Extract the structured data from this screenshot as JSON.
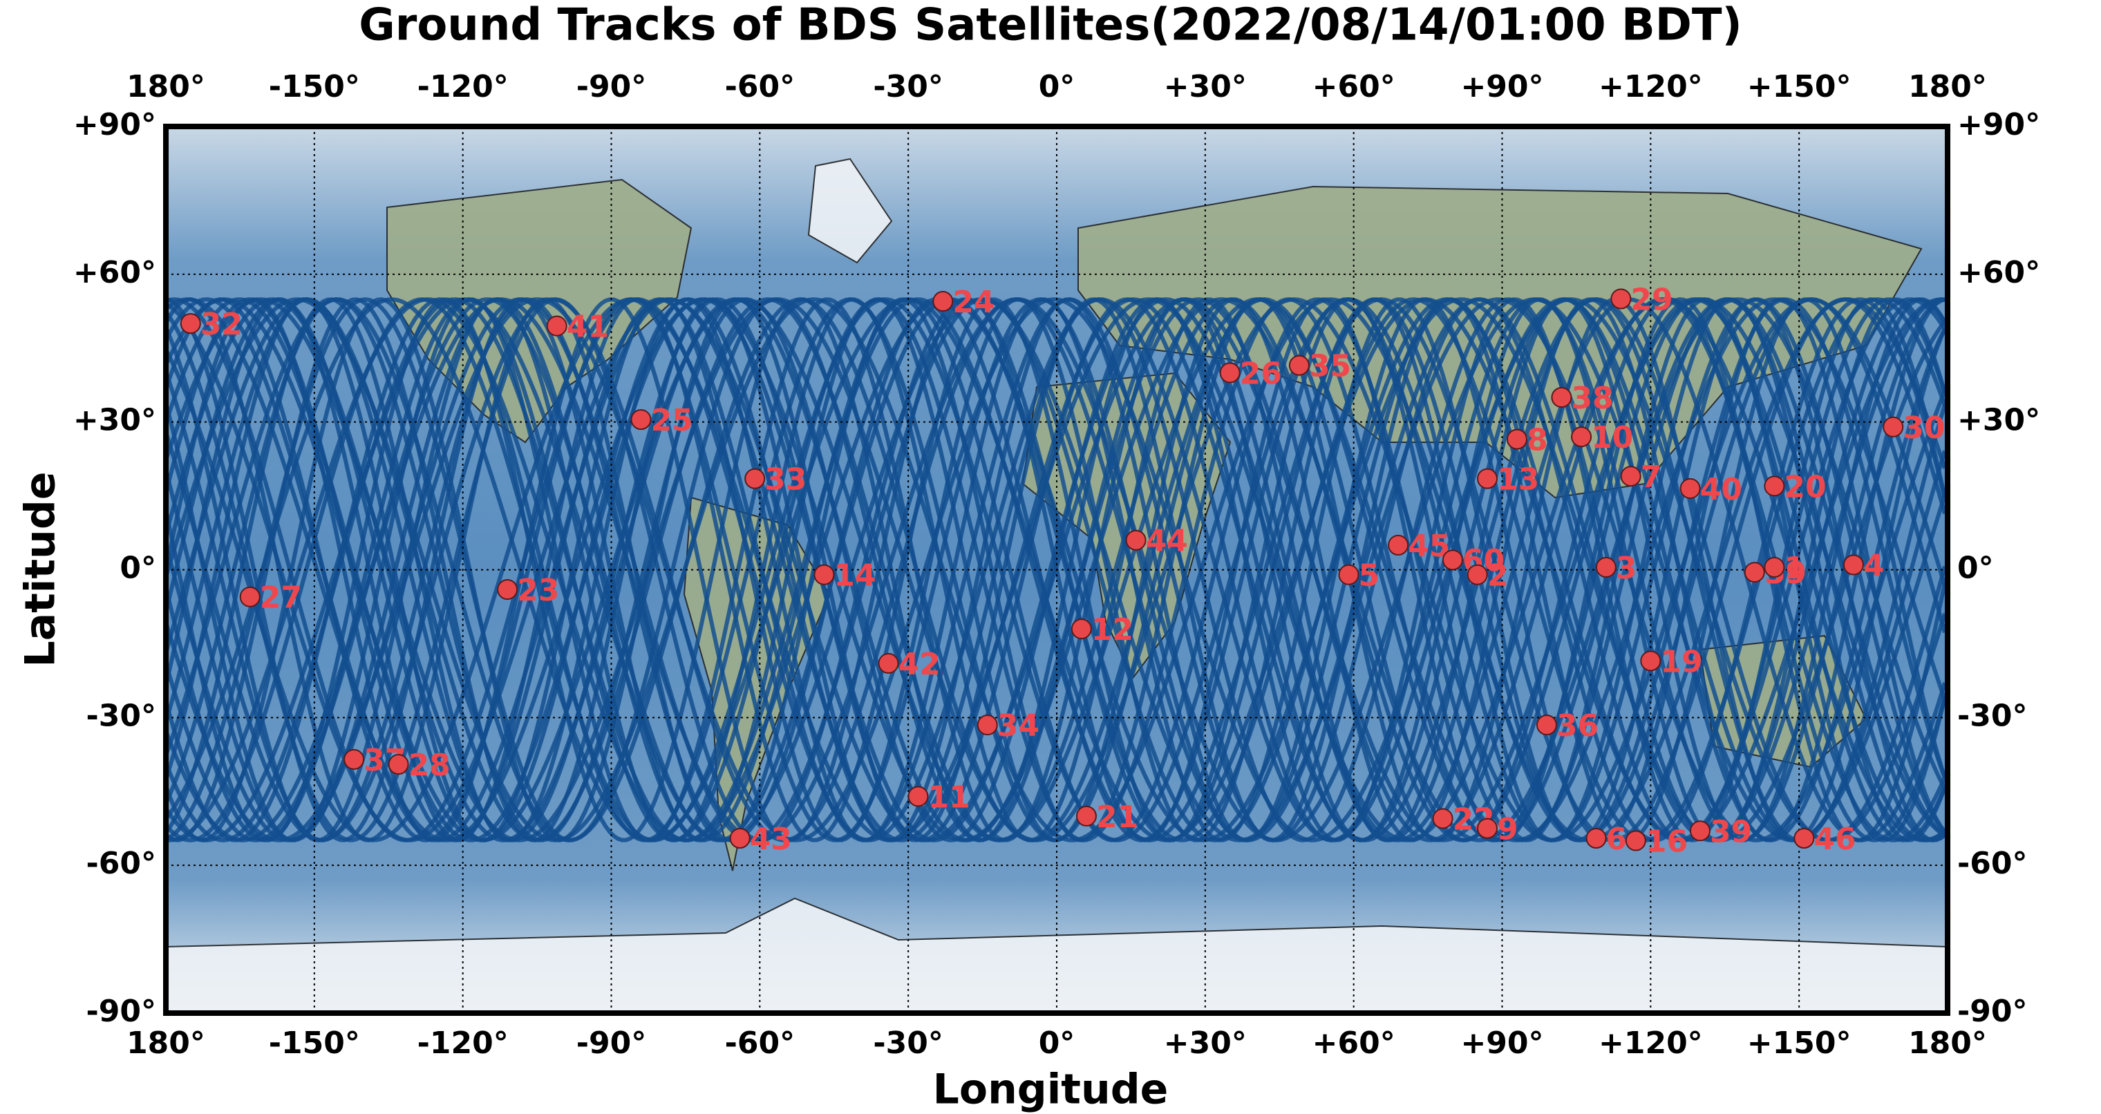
{
  "chart_data": {
    "type": "scatter",
    "title": "Ground Tracks of BDS Satellites(2022/08/14/01:00 BDT)",
    "x_label": "Longitude",
    "y_label": "Latitude",
    "xlim": [
      -180,
      180
    ],
    "ylim": [
      -90,
      90
    ],
    "xticks": [
      {
        "value": -180,
        "label": "180°"
      },
      {
        "value": -150,
        "label": "-150°"
      },
      {
        "value": -120,
        "label": "-120°"
      },
      {
        "value": -90,
        "label": "-90°"
      },
      {
        "value": -60,
        "label": "-60°"
      },
      {
        "value": -30,
        "label": "-30°"
      },
      {
        "value": 0,
        "label": "0°"
      },
      {
        "value": 30,
        "label": "+30°"
      },
      {
        "value": 60,
        "label": "+60°"
      },
      {
        "value": 90,
        "label": "+90°"
      },
      {
        "value": 120,
        "label": "+120°"
      },
      {
        "value": 150,
        "label": "+150°"
      },
      {
        "value": 180,
        "label": "180°"
      }
    ],
    "yticks": [
      {
        "value": 90,
        "label": "+90°"
      },
      {
        "value": 60,
        "label": "+60°"
      },
      {
        "value": 30,
        "label": "+30°"
      },
      {
        "value": 0,
        "label": "0°"
      },
      {
        "value": -30,
        "label": "-30°"
      },
      {
        "value": -60,
        "label": "-60°"
      },
      {
        "value": -90,
        "label": "-90°"
      }
    ],
    "grid": true,
    "color": "#e8474a",
    "label_color": "#f0474c",
    "track_color": "#134f8f",
    "labels": [
      "32",
      "41",
      "24",
      "29",
      "26",
      "35",
      "25",
      "38",
      "8",
      "10",
      "30",
      "33",
      "13",
      "7",
      "40",
      "20",
      "44",
      "45",
      "60",
      "2",
      "3",
      "5",
      "14",
      "59",
      "1",
      "4",
      "27",
      "23",
      "12",
      "42",
      "19",
      "34",
      "36",
      "37",
      "28",
      "11",
      "21",
      "22",
      "9",
      "39",
      "6",
      "16",
      "46",
      "43"
    ],
    "x": [
      -175,
      -101,
      -23,
      114,
      35,
      49,
      -84,
      102,
      93,
      106,
      169,
      -61,
      87,
      116,
      128,
      145,
      16,
      69,
      80,
      85,
      111,
      59,
      -47,
      141,
      145,
      161,
      -163,
      -111,
      5,
      -34,
      120,
      -14,
      99,
      -142,
      -133,
      -28,
      6,
      78,
      87,
      130,
      109,
      117,
      151,
      -64
    ],
    "values": [
      50,
      49.5,
      54.5,
      55,
      40,
      41.5,
      30.5,
      35,
      26.5,
      27,
      29,
      18.5,
      18.5,
      19,
      16.5,
      17,
      6,
      5,
      2,
      -1,
      0.5,
      -1,
      -1,
      -0.5,
      0.5,
      1,
      -5.5,
      -4,
      -12,
      -19,
      -18.5,
      -31.5,
      -31.5,
      -38.5,
      -39.5,
      -46,
      -50,
      -50.5,
      -52.5,
      -53,
      -54.5,
      -55,
      -54.5,
      -54.5
    ]
  }
}
